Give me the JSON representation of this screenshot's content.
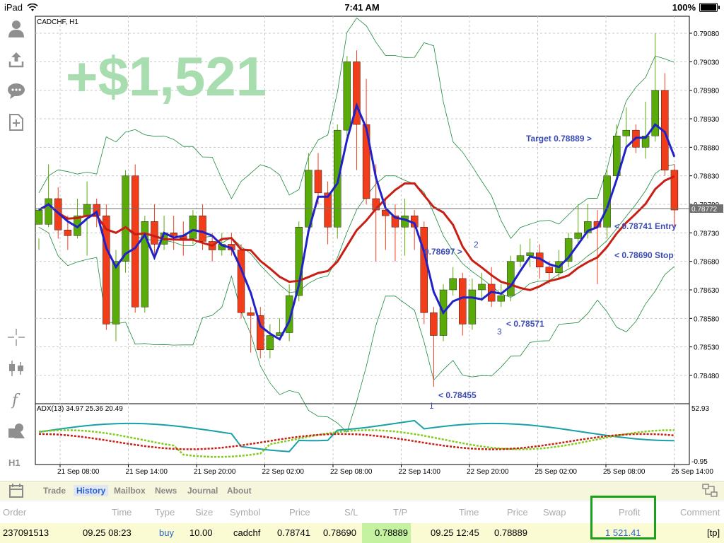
{
  "status_bar": {
    "device": "iPad",
    "time": "7:41 AM",
    "battery": "100%"
  },
  "chart": {
    "symbol_label": "CADCHF, H1",
    "overlay_profit": "+$1,521",
    "current_price": "0.78772",
    "price_axis": [
      "0.79080",
      "0.79030",
      "0.78980",
      "0.78930",
      "0.78880",
      "0.78830",
      "0.78780",
      "0.78730",
      "0.78680",
      "0.78630",
      "0.78580",
      "0.78530",
      "0.78480"
    ],
    "time_axis": [
      "21 Sep 08:00",
      "21 Sep 14:00",
      "21 Sep 20:00",
      "22 Sep 02:00",
      "22 Sep 08:00",
      "22 Sep 14:00",
      "22 Sep 20:00",
      "25 Sep 02:00",
      "25 Sep 08:00",
      "25 Sep 14:00"
    ],
    "annotations": {
      "target": "Target 0.78889 >",
      "entry": "< 0.78741 Entry",
      "stop": "< 0.78690 Stop",
      "p1": "< 0.78455",
      "p2": "0.78697 >",
      "p3": "< 0.78571",
      "n1": "1",
      "n2": "2",
      "n3": "3"
    },
    "indicator": {
      "label": "ADX(13) 34.97 25.36 20.49",
      "upper": "52.93",
      "lower": "-0.95"
    },
    "colors": {
      "bull": "#5aab0a",
      "bear": "#f23d1a",
      "ma_fast": "#2121c8",
      "ma_slow": "#c81e14",
      "bands": "#1a8a3a",
      "adx": "#17a0a8",
      "plus_di": "#7fcd1a",
      "minus_di": "#c81e14",
      "overlay": "#a8ddb0"
    }
  },
  "chart_data": {
    "type": "candlestick",
    "symbol": "CADCHF",
    "timeframe": "H1",
    "ylim": [
      0.7844,
      0.7911
    ],
    "candles": [
      [
        0.78745,
        0.7877,
        0.7872,
        0.787
      ],
      [
        0.78745,
        0.7879,
        0.7885,
        0.7874
      ],
      [
        0.7879,
        0.78735,
        0.7881,
        0.7872
      ],
      [
        0.78735,
        0.78725,
        0.7876,
        0.787
      ],
      [
        0.78725,
        0.7876,
        0.7879,
        0.7872
      ],
      [
        0.7876,
        0.7878,
        0.7882,
        0.7869
      ],
      [
        0.7878,
        0.7876,
        0.7879,
        0.7874
      ],
      [
        0.7876,
        0.7857,
        0.7878,
        0.7856
      ],
      [
        0.7857,
        0.7868,
        0.787,
        0.7854
      ],
      [
        0.7868,
        0.7883,
        0.7884,
        0.7866
      ],
      [
        0.7883,
        0.786,
        0.7885,
        0.7859
      ],
      [
        0.786,
        0.7875,
        0.7876,
        0.7859
      ],
      [
        0.7875,
        0.7871,
        0.7878,
        0.7869
      ],
      [
        0.7871,
        0.7873,
        0.7876,
        0.787
      ],
      [
        0.7873,
        0.78725,
        0.7876,
        0.787
      ],
      [
        0.78725,
        0.7872,
        0.7875,
        0.7869
      ],
      [
        0.7872,
        0.7876,
        0.7877,
        0.7871
      ],
      [
        0.7876,
        0.78715,
        0.7878,
        0.787
      ],
      [
        0.78715,
        0.787,
        0.7873,
        0.7868
      ],
      [
        0.787,
        0.7871,
        0.7873,
        0.7869
      ],
      [
        0.7871,
        0.787,
        0.7873,
        0.7869
      ],
      [
        0.787,
        0.7859,
        0.7871,
        0.7858
      ],
      [
        0.7859,
        0.78585,
        0.786,
        0.7852
      ],
      [
        0.78585,
        0.78525,
        0.786,
        0.7851
      ],
      [
        0.78525,
        0.7855,
        0.7857,
        0.7851
      ],
      [
        0.7855,
        0.78555,
        0.7858,
        0.7855
      ],
      [
        0.78555,
        0.7862,
        0.7864,
        0.7854
      ],
      [
        0.7862,
        0.7874,
        0.7875,
        0.7861
      ],
      [
        0.7874,
        0.7884,
        0.7887,
        0.7873
      ],
      [
        0.7884,
        0.788,
        0.7887,
        0.7878
      ],
      [
        0.788,
        0.7874,
        0.7882,
        0.7871
      ],
      [
        0.7874,
        0.7891,
        0.7892,
        0.7872
      ],
      [
        0.7891,
        0.7903,
        0.7904,
        0.789
      ],
      [
        0.7903,
        0.7892,
        0.7905,
        0.7884
      ],
      [
        0.7892,
        0.7879,
        0.79,
        0.7878
      ],
      [
        0.7879,
        0.7877,
        0.7885,
        0.7868
      ],
      [
        0.7877,
        0.7876,
        0.7879,
        0.787
      ],
      [
        0.7876,
        0.7874,
        0.7878,
        0.7868
      ],
      [
        0.7874,
        0.7876,
        0.7879,
        0.7869
      ],
      [
        0.7876,
        0.7874,
        0.7877,
        0.787
      ],
      [
        0.7874,
        0.7859,
        0.7875,
        0.7857
      ],
      [
        0.7859,
        0.7855,
        0.786,
        0.7846
      ],
      [
        0.7855,
        0.7863,
        0.7864,
        0.7854
      ],
      [
        0.7863,
        0.7865,
        0.7867,
        0.7862
      ],
      [
        0.7865,
        0.7857,
        0.7866,
        0.7855
      ],
      [
        0.7857,
        0.7863,
        0.7865,
        0.7856
      ],
      [
        0.7863,
        0.7864,
        0.7866,
        0.7861
      ],
      [
        0.7864,
        0.7861,
        0.7867,
        0.786
      ],
      [
        0.7861,
        0.7862,
        0.7864,
        0.786
      ],
      [
        0.7862,
        0.7868,
        0.7869,
        0.7861
      ],
      [
        0.7868,
        0.7869,
        0.7871,
        0.7867
      ],
      [
        0.7869,
        0.78695,
        0.7872,
        0.7867
      ],
      [
        0.78695,
        0.7867,
        0.7871,
        0.7865
      ],
      [
        0.7867,
        0.7866,
        0.7868,
        0.7864
      ],
      [
        0.7866,
        0.7868,
        0.787,
        0.7865
      ],
      [
        0.7868,
        0.7872,
        0.7873,
        0.7867
      ],
      [
        0.7872,
        0.7873,
        0.7878,
        0.7871
      ],
      [
        0.7873,
        0.7875,
        0.7878,
        0.7872
      ],
      [
        0.7875,
        0.7874,
        0.7877,
        0.7864
      ],
      [
        0.7874,
        0.7883,
        0.7884,
        0.7872
      ],
      [
        0.7883,
        0.789,
        0.7892,
        0.7882
      ],
      [
        0.789,
        0.7891,
        0.7895,
        0.7888
      ],
      [
        0.7891,
        0.7888,
        0.7892,
        0.7887
      ],
      [
        0.7888,
        0.789,
        0.7896,
        0.7886
      ],
      [
        0.789,
        0.7898,
        0.7908,
        0.7889
      ],
      [
        0.7898,
        0.7884,
        0.7901,
        0.7883
      ],
      [
        0.7884,
        0.7877,
        0.7885,
        0.7874
      ]
    ],
    "levels": {
      "target": 0.78889,
      "entry": 0.78741,
      "stop": 0.7869,
      "current": 0.78772
    }
  },
  "bottom_tabs": [
    "Trade",
    "History",
    "Mailbox",
    "News",
    "Journal",
    "About"
  ],
  "history": {
    "columns": [
      "Order",
      "Time",
      "Type",
      "Size",
      "Symbol",
      "Price",
      "S/L",
      "T/P",
      "Time",
      "Price",
      "Swap",
      "Profit",
      "Comment"
    ],
    "row": [
      "237091513",
      "09.25 08:23",
      "buy",
      "10.00",
      "cadchf",
      "0.78741",
      "0.78690",
      "0.78889",
      "09.25 12:45",
      "0.78889",
      "",
      "1 521.41",
      "[tp]"
    ]
  }
}
